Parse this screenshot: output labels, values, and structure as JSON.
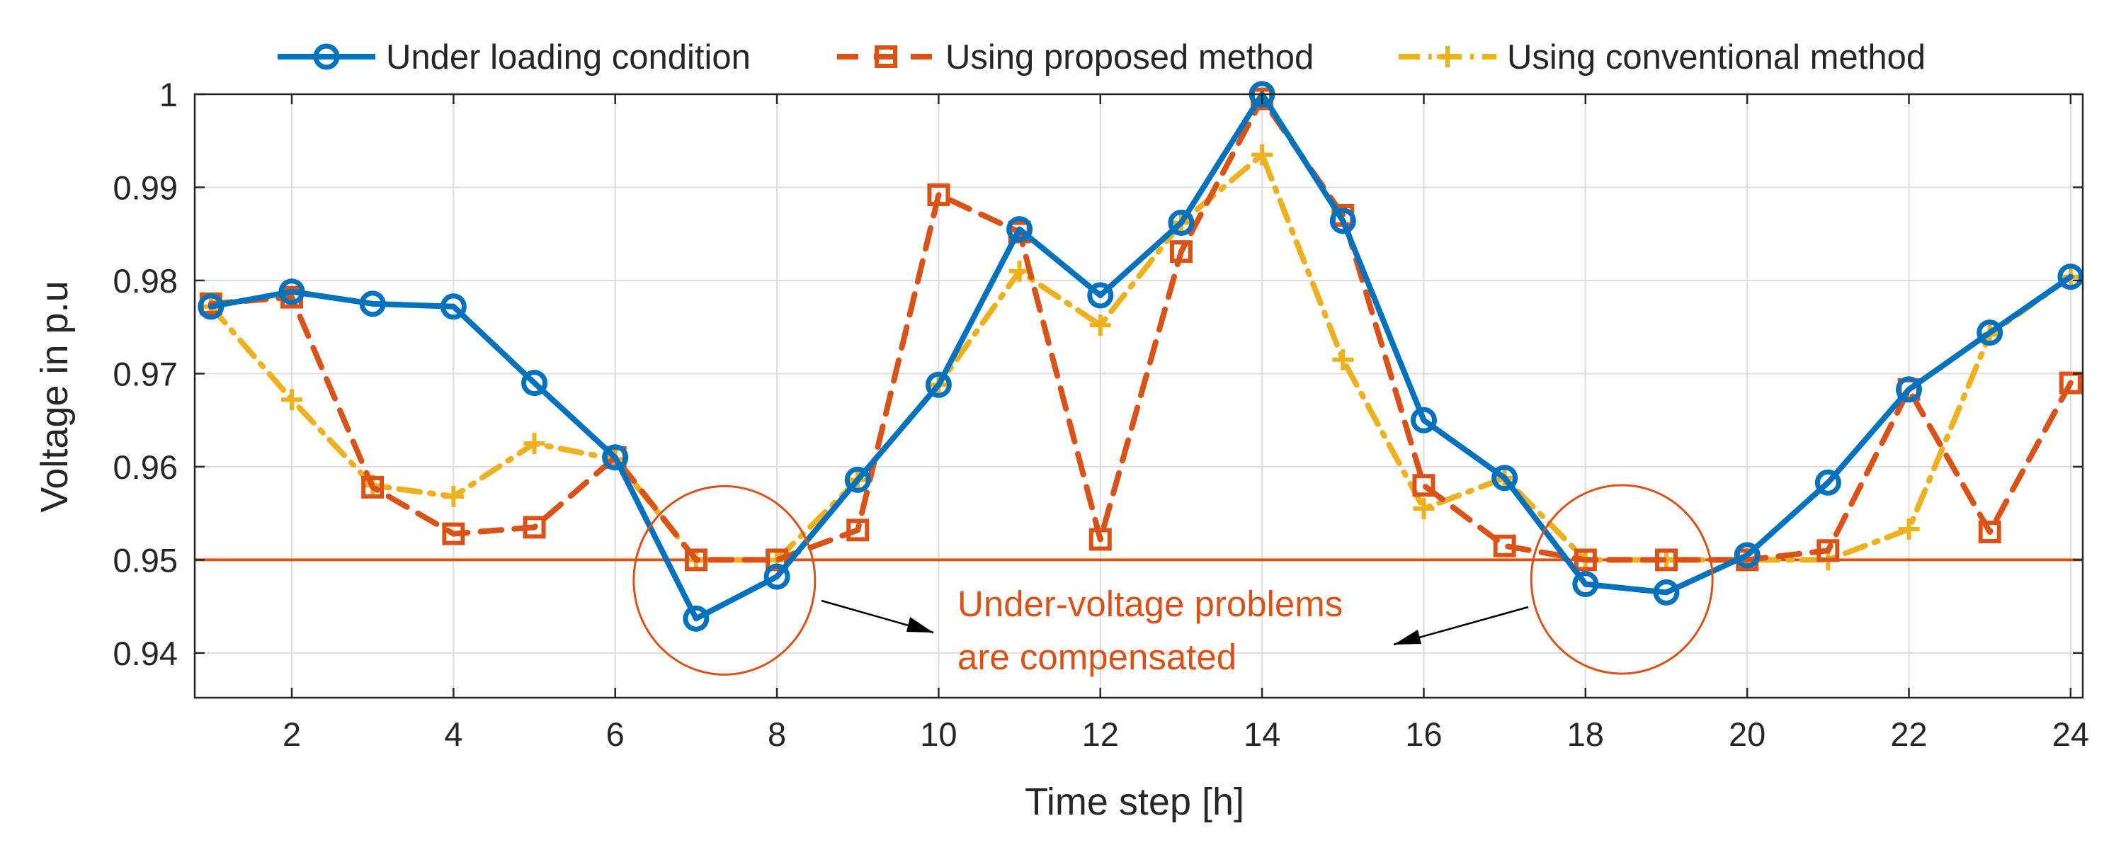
{
  "chart_data": {
    "type": "line",
    "title": "",
    "xlabel": "Time step [h]",
    "ylabel": "Voltage in p.u",
    "xlim": [
      0.8,
      24.15
    ],
    "ylim": [
      0.9352,
      1.0
    ],
    "xticks": [
      2,
      4,
      6,
      8,
      10,
      12,
      14,
      16,
      18,
      20,
      22,
      24
    ],
    "yticks": [
      0.94,
      0.95,
      0.96,
      0.97,
      0.98,
      0.99,
      1
    ],
    "ytick_labels": [
      "0.94",
      "0.95",
      "0.96",
      "0.97",
      "0.98",
      "0.99",
      "1"
    ],
    "grid": true,
    "legend_position": "top-center",
    "x": [
      1,
      2,
      3,
      4,
      5,
      6,
      7,
      8,
      9,
      10,
      11,
      12,
      13,
      14,
      15,
      16,
      17,
      18,
      19,
      20,
      21,
      22,
      23,
      24
    ],
    "series": [
      {
        "name": "Under loading condition",
        "color": "#0072BD",
        "line_style": "solid",
        "marker": "circle",
        "values": [
          0.9772,
          0.9788,
          0.9775,
          0.9772,
          0.969,
          0.961,
          0.9437,
          0.9482,
          0.9586,
          0.9688,
          0.9855,
          0.9784,
          0.9862,
          1.0,
          0.9864,
          0.965,
          0.9588,
          0.9474,
          0.9465,
          0.9505,
          0.9583,
          0.9683,
          0.9744,
          0.9804
        ]
      },
      {
        "name": "Using proposed method",
        "color": "#D95319",
        "line_style": "dashed",
        "marker": "square",
        "values": [
          0.9775,
          0.9782,
          0.9578,
          0.9528,
          0.9535,
          0.961,
          0.95,
          0.95,
          0.9532,
          0.9892,
          0.9852,
          0.9522,
          0.9831,
          0.9995,
          0.987,
          0.958,
          0.9515,
          0.95,
          0.95,
          0.95,
          0.951,
          0.9683,
          0.953,
          0.969
        ]
      },
      {
        "name": "Using conventional method",
        "color": "#EDB120",
        "line_style": "dashdot",
        "marker": "plus",
        "values": [
          0.9772,
          0.9672,
          0.958,
          0.9568,
          0.9625,
          0.9608,
          0.95,
          0.95,
          0.9586,
          0.9688,
          0.981,
          0.9752,
          0.9862,
          0.9935,
          0.9715,
          0.9555,
          0.9588,
          0.95,
          0.95,
          0.95,
          0.95,
          0.9533,
          0.9742,
          0.9804
        ]
      }
    ],
    "reference_line": {
      "y": 0.95,
      "color": "#D95319"
    },
    "annotation": {
      "lines": [
        "Under-voltage problems",
        "are compensated"
      ],
      "color": "#D95319",
      "circled_regions": [
        {
          "x_center": 7.35,
          "y_center": 0.9478
        },
        {
          "x_center": 18.45,
          "y_center": 0.9479
        }
      ]
    }
  }
}
